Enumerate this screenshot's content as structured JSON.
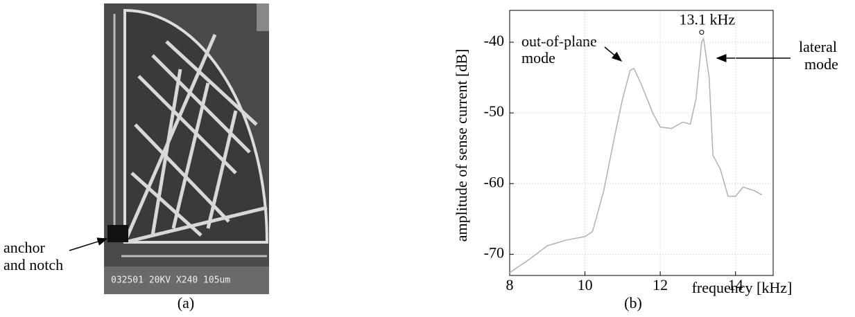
{
  "panel_a": {
    "annotation": [
      "anchor",
      "and notch"
    ],
    "image_text": "032501 20KV X240 105um",
    "caption": "(a)"
  },
  "chart_data": {
    "type": "line",
    "caption": "(b)",
    "x_label": "frequency [kHz]",
    "y_label": "amplitude of sense current [dB]",
    "xlim": [
      8,
      15
    ],
    "xticks": [
      8,
      10,
      12,
      14
    ],
    "ylim": [
      -73,
      -35.5
    ],
    "yticks": [
      -40,
      -50,
      -60,
      -70
    ],
    "grid": true,
    "series": [
      {
        "color": "#b0b0b0",
        "x": [
          8,
          8.5,
          9,
          9.5,
          10,
          10.2,
          10.5,
          10.8,
          11,
          11.2,
          11.3,
          11.5,
          11.8,
          12,
          12.3,
          12.6,
          12.8,
          12.95,
          13.1,
          13.15,
          13.3,
          13.4,
          13.6,
          13.8,
          14,
          14.2,
          14.5,
          14.7
        ],
        "values": [
          -72.6,
          -70.8,
          -68.8,
          -68,
          -67.5,
          -66.8,
          -61,
          -53,
          -48,
          -44,
          -43.7,
          -46,
          -50,
          -52,
          -52.2,
          -51.3,
          -51.6,
          -48,
          -40,
          -39.5,
          -45,
          -56,
          -58,
          -61.8,
          -61.8,
          -60.5,
          -61,
          -61.6
        ]
      }
    ],
    "peak": {
      "x": 13.1,
      "y": -38.6,
      "label": "13.1 kHz"
    },
    "annotations": [
      {
        "lines": [
          "out-of-plane",
          "mode"
        ]
      },
      {
        "lines": [
          "lateral",
          "mode"
        ]
      }
    ]
  }
}
